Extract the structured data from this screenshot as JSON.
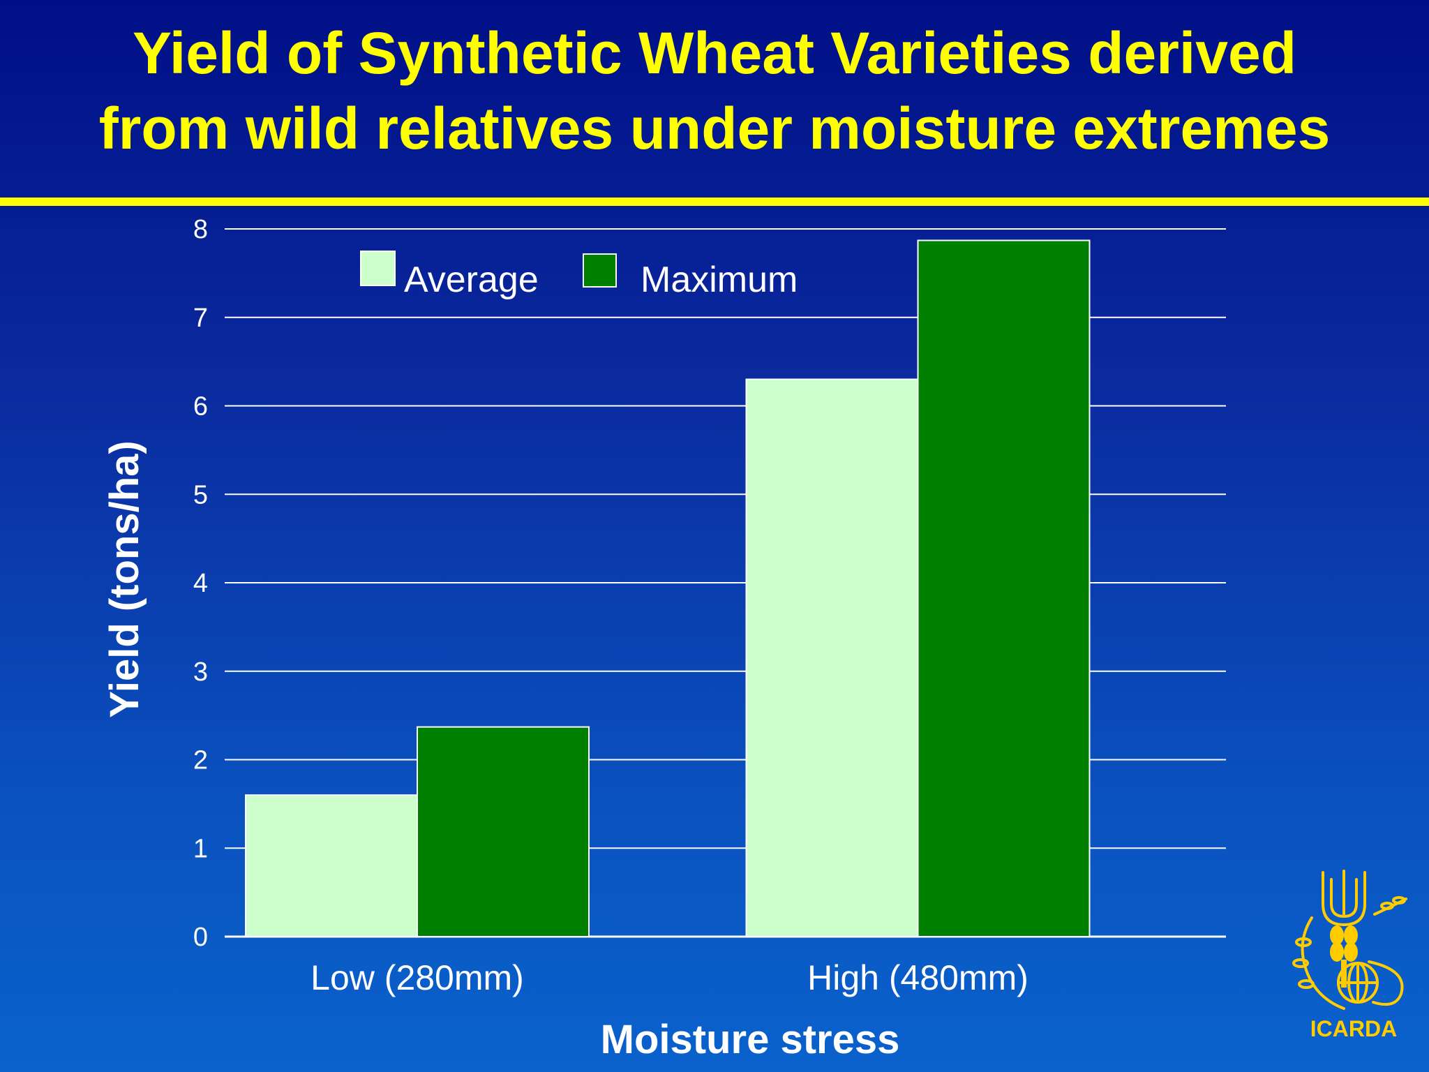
{
  "slide": {
    "title_lines": [
      "Yield of Synthetic Wheat Varieties derived",
      "from wild relatives under moisture extremes"
    ],
    "logo_text": "ICARDA"
  },
  "colors": {
    "background_top": "#000f87",
    "background_bottom": "#0a62cc",
    "title": "#ffff00",
    "average": "#ccffcc",
    "maximum": "#008000"
  },
  "chart_data": {
    "type": "bar",
    "title": "",
    "xlabel": "Moisture stress",
    "ylabel": "Yield (tons/ha)",
    "categories": [
      "Low (280mm)",
      "High (480mm)"
    ],
    "series": [
      {
        "name": "Average",
        "values": [
          1.6,
          6.3
        ],
        "color": "#ccffcc"
      },
      {
        "name": "Maximum",
        "values": [
          2.37,
          7.87
        ],
        "color": "#008000"
      }
    ],
    "ylim": [
      0,
      8
    ],
    "yticks": [
      "0",
      "1",
      "2",
      "3",
      "4",
      "5",
      "6",
      "7",
      "8"
    ],
    "grid": true,
    "legend": "top-left"
  }
}
